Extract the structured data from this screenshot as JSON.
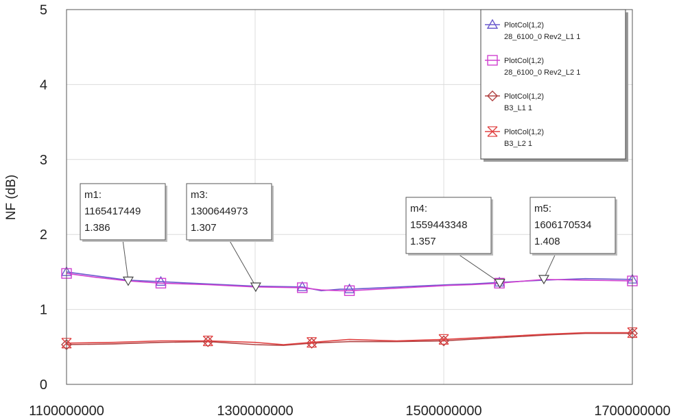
{
  "chart_data": {
    "type": "line",
    "title": "",
    "xlabel": "",
    "ylabel": "NF (dB)",
    "xlim": [
      1100000000,
      1700000000
    ],
    "ylim": [
      0,
      5
    ],
    "xticks": [
      1100000000,
      1300000000,
      1500000000,
      1700000000
    ],
    "xtick_labels": [
      "1100000000",
      "1300000000",
      "1500000000",
      "1700000000"
    ],
    "yticks": [
      0,
      1,
      2,
      3,
      4,
      5
    ],
    "ytick_labels": [
      "0",
      "1",
      "2",
      "3",
      "4",
      "5"
    ],
    "grid": true,
    "legend_position": "top-right",
    "series": [
      {
        "name": "PlotCol(1,2) 28_6100_0 Rev2_L1 1",
        "color": "#6a5acd",
        "marker": "triangle",
        "x": [
          1100000000,
          1130000000,
          1165000000,
          1200000000,
          1250000000,
          1300000000,
          1350000000,
          1370000000,
          1390000000,
          1400000000,
          1505000000,
          1530000000,
          1559000000,
          1606000000,
          1650000000,
          1700000000
        ],
        "y": [
          1.5,
          1.45,
          1.39,
          1.37,
          1.34,
          1.31,
          1.3,
          1.25,
          1.27,
          1.27,
          1.33,
          1.34,
          1.36,
          1.39,
          1.41,
          1.4
        ]
      },
      {
        "name": "PlotCol(1,2) 28_6100_0 Rev2_L2 1",
        "color": "#d040d0",
        "marker": "square",
        "x": [
          1100000000,
          1130000000,
          1165000000,
          1200000000,
          1250000000,
          1300000000,
          1350000000,
          1370000000,
          1390000000,
          1400000000,
          1505000000,
          1530000000,
          1559000000,
          1606000000,
          1650000000,
          1700000000
        ],
        "y": [
          1.48,
          1.43,
          1.38,
          1.35,
          1.33,
          1.3,
          1.29,
          1.26,
          1.25,
          1.25,
          1.32,
          1.33,
          1.35,
          1.4,
          1.39,
          1.38
        ]
      },
      {
        "name": "PlotCol(1,2) B3_L1 1",
        "color": "#b04040",
        "marker": "diamond",
        "x": [
          1100000000,
          1150000000,
          1200000000,
          1250000000,
          1300000000,
          1330000000,
          1360000000,
          1400000000,
          1450000000,
          1500000000,
          1610000000,
          1650000000,
          1700000000
        ],
        "y": [
          0.53,
          0.54,
          0.56,
          0.57,
          0.53,
          0.52,
          0.55,
          0.57,
          0.57,
          0.58,
          0.66,
          0.68,
          0.68
        ]
      },
      {
        "name": "PlotCol(1,2) B3_L2 1",
        "color": "#e04040",
        "marker": "x",
        "x": [
          1100000000,
          1150000000,
          1200000000,
          1250000000,
          1300000000,
          1330000000,
          1360000000,
          1400000000,
          1450000000,
          1500000000,
          1610000000,
          1650000000,
          1700000000
        ],
        "y": [
          0.55,
          0.56,
          0.58,
          0.58,
          0.56,
          0.53,
          0.56,
          0.6,
          0.58,
          0.6,
          0.67,
          0.69,
          0.69
        ]
      }
    ],
    "legend": [
      {
        "line1": "PlotCol(1,2)",
        "line2": "28_6100_0 Rev2_L1 1",
        "color": "#6a5acd",
        "marker": "triangle"
      },
      {
        "line1": "PlotCol(1,2)",
        "line2": "28_6100_0 Rev2_L2 1",
        "color": "#d040d0",
        "marker": "square"
      },
      {
        "line1": "PlotCol(1,2)",
        "line2": "B3_L1 1",
        "color": "#b04040",
        "marker": "diamond"
      },
      {
        "line1": "PlotCol(1,2)",
        "line2": "B3_L2 1",
        "color": "#e04040",
        "marker": "x"
      }
    ],
    "markers": [
      {
        "id": "m1:",
        "x_label": "1165417449",
        "y_label": "1.386",
        "x": 1165417449,
        "y": 1.386
      },
      {
        "id": "m3:",
        "x_label": "1300644973",
        "y_label": "1.307",
        "x": 1300644973,
        "y": 1.307
      },
      {
        "id": "m4:",
        "x_label": "1559443348",
        "y_label": "1.357",
        "x": 1559443348,
        "y": 1.357
      },
      {
        "id": "m5:",
        "x_label": "1606170534",
        "y_label": "1.408",
        "x": 1606170534,
        "y": 1.408
      }
    ]
  }
}
